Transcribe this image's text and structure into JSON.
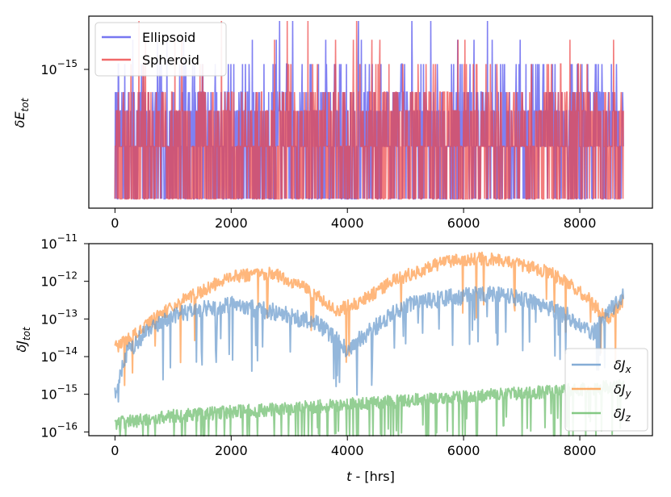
{
  "chart_data": [
    {
      "type": "line",
      "panel": "top",
      "ylabel_base": "δE",
      "ylabel_sub": "tot",
      "yscale": "log",
      "xlim": [
        -450,
        9250
      ],
      "ylim": [
        0,
        1
      ],
      "ytick": {
        "base": "10",
        "exp": "−15",
        "level": 0.72
      },
      "xticks": [
        {
          "value": 0,
          "label": "0"
        },
        {
          "value": 2000,
          "label": "2000"
        },
        {
          "value": 4000,
          "label": "4000"
        },
        {
          "value": 6000,
          "label": "6000"
        },
        {
          "value": 8000,
          "label": "8000"
        }
      ],
      "quantized_levels": [
        0.05,
        0.33,
        0.52,
        0.62,
        0.77,
        0.9,
        1.0
      ],
      "series": [
        {
          "name": "Ellipsoid",
          "color": "#5555ee",
          "seed": 7,
          "n": 1400,
          "weights": [
            0.28,
            0.34,
            0.2,
            0.12,
            0.05,
            0.007,
            0.003
          ],
          "late_boost": 0.15
        },
        {
          "name": "Spheroid",
          "color": "#ee4444",
          "seed": 23,
          "n": 1400,
          "weights": [
            0.34,
            0.36,
            0.17,
            0.09,
            0.03,
            0.008,
            0.002
          ],
          "late_boost": 0.18
        }
      ],
      "legend": {
        "position": "top-left",
        "entries": [
          "Ellipsoid",
          "Spheroid"
        ]
      }
    },
    {
      "type": "line",
      "panel": "bottom",
      "ylabel_base": "δJ",
      "ylabel_sub": "tot",
      "xlabel_var": "t",
      "xlabel_rest": " - [hrs]",
      "yscale": "log",
      "xlim": [
        -450,
        9250
      ],
      "ylim": [
        -16.1,
        -11.0
      ],
      "yticks": [
        {
          "exp": -11,
          "label_base": "10",
          "label_exp": "−11"
        },
        {
          "exp": -12,
          "label_base": "10",
          "label_exp": "−12"
        },
        {
          "exp": -13,
          "label_base": "10",
          "label_exp": "−13"
        },
        {
          "exp": -14,
          "label_base": "10",
          "label_exp": "−14"
        },
        {
          "exp": -15,
          "label_base": "10",
          "label_exp": "−15"
        },
        {
          "exp": -16,
          "label_base": "10",
          "label_exp": "−16"
        }
      ],
      "xticks": [
        {
          "value": 0,
          "label": "0"
        },
        {
          "value": 2000,
          "label": "2000"
        },
        {
          "value": 4000,
          "label": "4000"
        },
        {
          "value": 6000,
          "label": "6000"
        },
        {
          "value": 8000,
          "label": "8000"
        }
      ],
      "series": [
        {
          "name": "δJx",
          "label_base": "δJ",
          "label_sub": "x",
          "color": "#6699cc",
          "seed": 101,
          "n": 900,
          "noise": 0.45,
          "dip_prob": 0.05,
          "envelope": [
            [
              0,
              -14.7
            ],
            [
              200,
              -13.7
            ],
            [
              600,
              -13.0
            ],
            [
              1200,
              -12.6
            ],
            [
              2000,
              -12.4
            ],
            [
              2800,
              -12.6
            ],
            [
              3500,
              -12.9
            ],
            [
              4000,
              -13.6
            ],
            [
              4300,
              -13.2
            ],
            [
              5000,
              -12.4
            ],
            [
              5800,
              -12.2
            ],
            [
              6600,
              -12.1
            ],
            [
              7200,
              -12.3
            ],
            [
              7800,
              -12.7
            ],
            [
              8200,
              -13.2
            ],
            [
              8750,
              -12.1
            ]
          ]
        },
        {
          "name": "δJy",
          "label_base": "δJ",
          "label_sub": "y",
          "color": "#ff9944",
          "seed": 202,
          "n": 900,
          "noise": 0.35,
          "dip_prob": 0.04,
          "envelope": [
            [
              0,
              -13.6
            ],
            [
              300,
              -13.3
            ],
            [
              700,
              -12.8
            ],
            [
              1200,
              -12.3
            ],
            [
              2000,
              -11.7
            ],
            [
              2700,
              -11.6
            ],
            [
              3300,
              -12.0
            ],
            [
              3800,
              -12.6
            ],
            [
              4200,
              -12.4
            ],
            [
              4800,
              -11.8
            ],
            [
              5600,
              -11.35
            ],
            [
              6200,
              -11.2
            ],
            [
              6800,
              -11.3
            ],
            [
              7500,
              -11.6
            ],
            [
              8100,
              -12.2
            ],
            [
              8500,
              -12.9
            ],
            [
              8750,
              -12.3
            ]
          ]
        },
        {
          "name": "δJz",
          "label_base": "δJ",
          "label_sub": "z",
          "color": "#66bb66",
          "seed": 303,
          "n": 1000,
          "noise": 0.35,
          "dip_prob": 0.1,
          "envelope": [
            [
              0,
              -15.6
            ],
            [
              1000,
              -15.4
            ],
            [
              2000,
              -15.3
            ],
            [
              3000,
              -15.2
            ],
            [
              4000,
              -15.1
            ],
            [
              5000,
              -15.0
            ],
            [
              6000,
              -14.9
            ],
            [
              7000,
              -14.8
            ],
            [
              8000,
              -14.7
            ],
            [
              8750,
              -14.6
            ]
          ]
        }
      ],
      "legend": {
        "position": "lower-right",
        "entries": [
          "δJx",
          "δJy",
          "δJz"
        ]
      }
    }
  ]
}
